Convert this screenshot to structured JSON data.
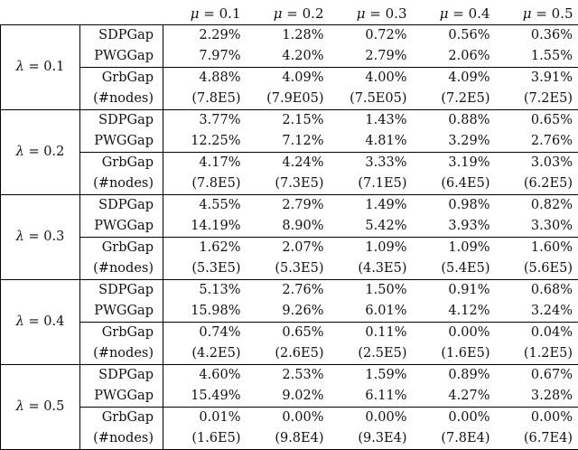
{
  "header": {
    "mu_symbol": "μ",
    "columns": [
      "= 0.1",
      "= 0.2",
      "= 0.3",
      "= 0.4",
      "= 0.5"
    ]
  },
  "lambda_symbol": "λ",
  "blocks": [
    {
      "lambda": "= 0.1",
      "rows": [
        {
          "label": "SDPGap",
          "values": [
            "2.29%",
            "1.28%",
            "0.72%",
            "0.56%",
            "0.36%"
          ]
        },
        {
          "label": "PWGGap",
          "values": [
            "7.97%",
            "4.20%",
            "2.79%",
            "2.06%",
            "1.55%"
          ]
        },
        {
          "label": "GrbGap",
          "values": [
            "4.88%",
            "4.09%",
            "4.00%",
            "4.09%",
            "3.91%"
          ]
        },
        {
          "label": "(#nodes)",
          "values": [
            "(7.8E5)",
            "(7.9E05)",
            "(7.5E05)",
            "(7.2E5)",
            "(7.2E5)"
          ]
        }
      ]
    },
    {
      "lambda": "= 0.2",
      "rows": [
        {
          "label": "SDPGap",
          "values": [
            "3.77%",
            "2.15%",
            "1.43%",
            "0.88%",
            "0.65%"
          ]
        },
        {
          "label": "PWGGap",
          "values": [
            "12.25%",
            "7.12%",
            "4.81%",
            "3.29%",
            "2.76%"
          ]
        },
        {
          "label": "GrbGap",
          "values": [
            "4.17%",
            "4.24%",
            "3.33%",
            "3.19%",
            "3.03%"
          ]
        },
        {
          "label": "(#nodes)",
          "values": [
            "(7.8E5)",
            "(7.3E5)",
            "(7.1E5)",
            "(6.4E5)",
            "(6.2E5)"
          ]
        }
      ]
    },
    {
      "lambda": "= 0.3",
      "rows": [
        {
          "label": "SDPGap",
          "values": [
            "4.55%",
            "2.79%",
            "1.49%",
            "0.98%",
            "0.82%"
          ]
        },
        {
          "label": "PWGGap",
          "values": [
            "14.19%",
            "8.90%",
            "5.42%",
            "3.93%",
            "3.30%"
          ]
        },
        {
          "label": "GrbGap",
          "values": [
            "1.62%",
            "2.07%",
            "1.09%",
            "1.09%",
            "1.60%"
          ]
        },
        {
          "label": "(#nodes)",
          "values": [
            "(5.3E5)",
            "(5.3E5)",
            "(4.3E5)",
            "(5.4E5)",
            "(5.6E5)"
          ]
        }
      ]
    },
    {
      "lambda": "= 0.4",
      "rows": [
        {
          "label": "SDPGap",
          "values": [
            "5.13%",
            "2.76%",
            "1.50%",
            "0.91%",
            "0.68%"
          ]
        },
        {
          "label": "PWGGap",
          "values": [
            "15.98%",
            "9.26%",
            "6.01%",
            "4.12%",
            "3.24%"
          ]
        },
        {
          "label": "GrbGap",
          "values": [
            "0.74%",
            "0.65%",
            "0.11%",
            "0.00%",
            "0.04%"
          ]
        },
        {
          "label": "(#nodes)",
          "values": [
            "(4.2E5)",
            "(2.6E5)",
            "(2.5E5)",
            "(1.6E5)",
            "(1.2E5)"
          ]
        }
      ]
    },
    {
      "lambda": "= 0.5",
      "rows": [
        {
          "label": "SDPGap",
          "values": [
            "4.60%",
            "2.53%",
            "1.59%",
            "0.89%",
            "0.67%"
          ]
        },
        {
          "label": "PWGGap",
          "values": [
            "15.49%",
            "9.02%",
            "6.11%",
            "4.27%",
            "3.28%"
          ]
        },
        {
          "label": "GrbGap",
          "values": [
            "0.01%",
            "0.00%",
            "0.00%",
            "0.00%",
            "0.00%"
          ]
        },
        {
          "label": "(#nodes)",
          "values": [
            "(1.6E5)",
            "(9.8E4)",
            "(9.3E4)",
            "(7.8E4)",
            "(6.7E4)"
          ]
        }
      ]
    }
  ]
}
